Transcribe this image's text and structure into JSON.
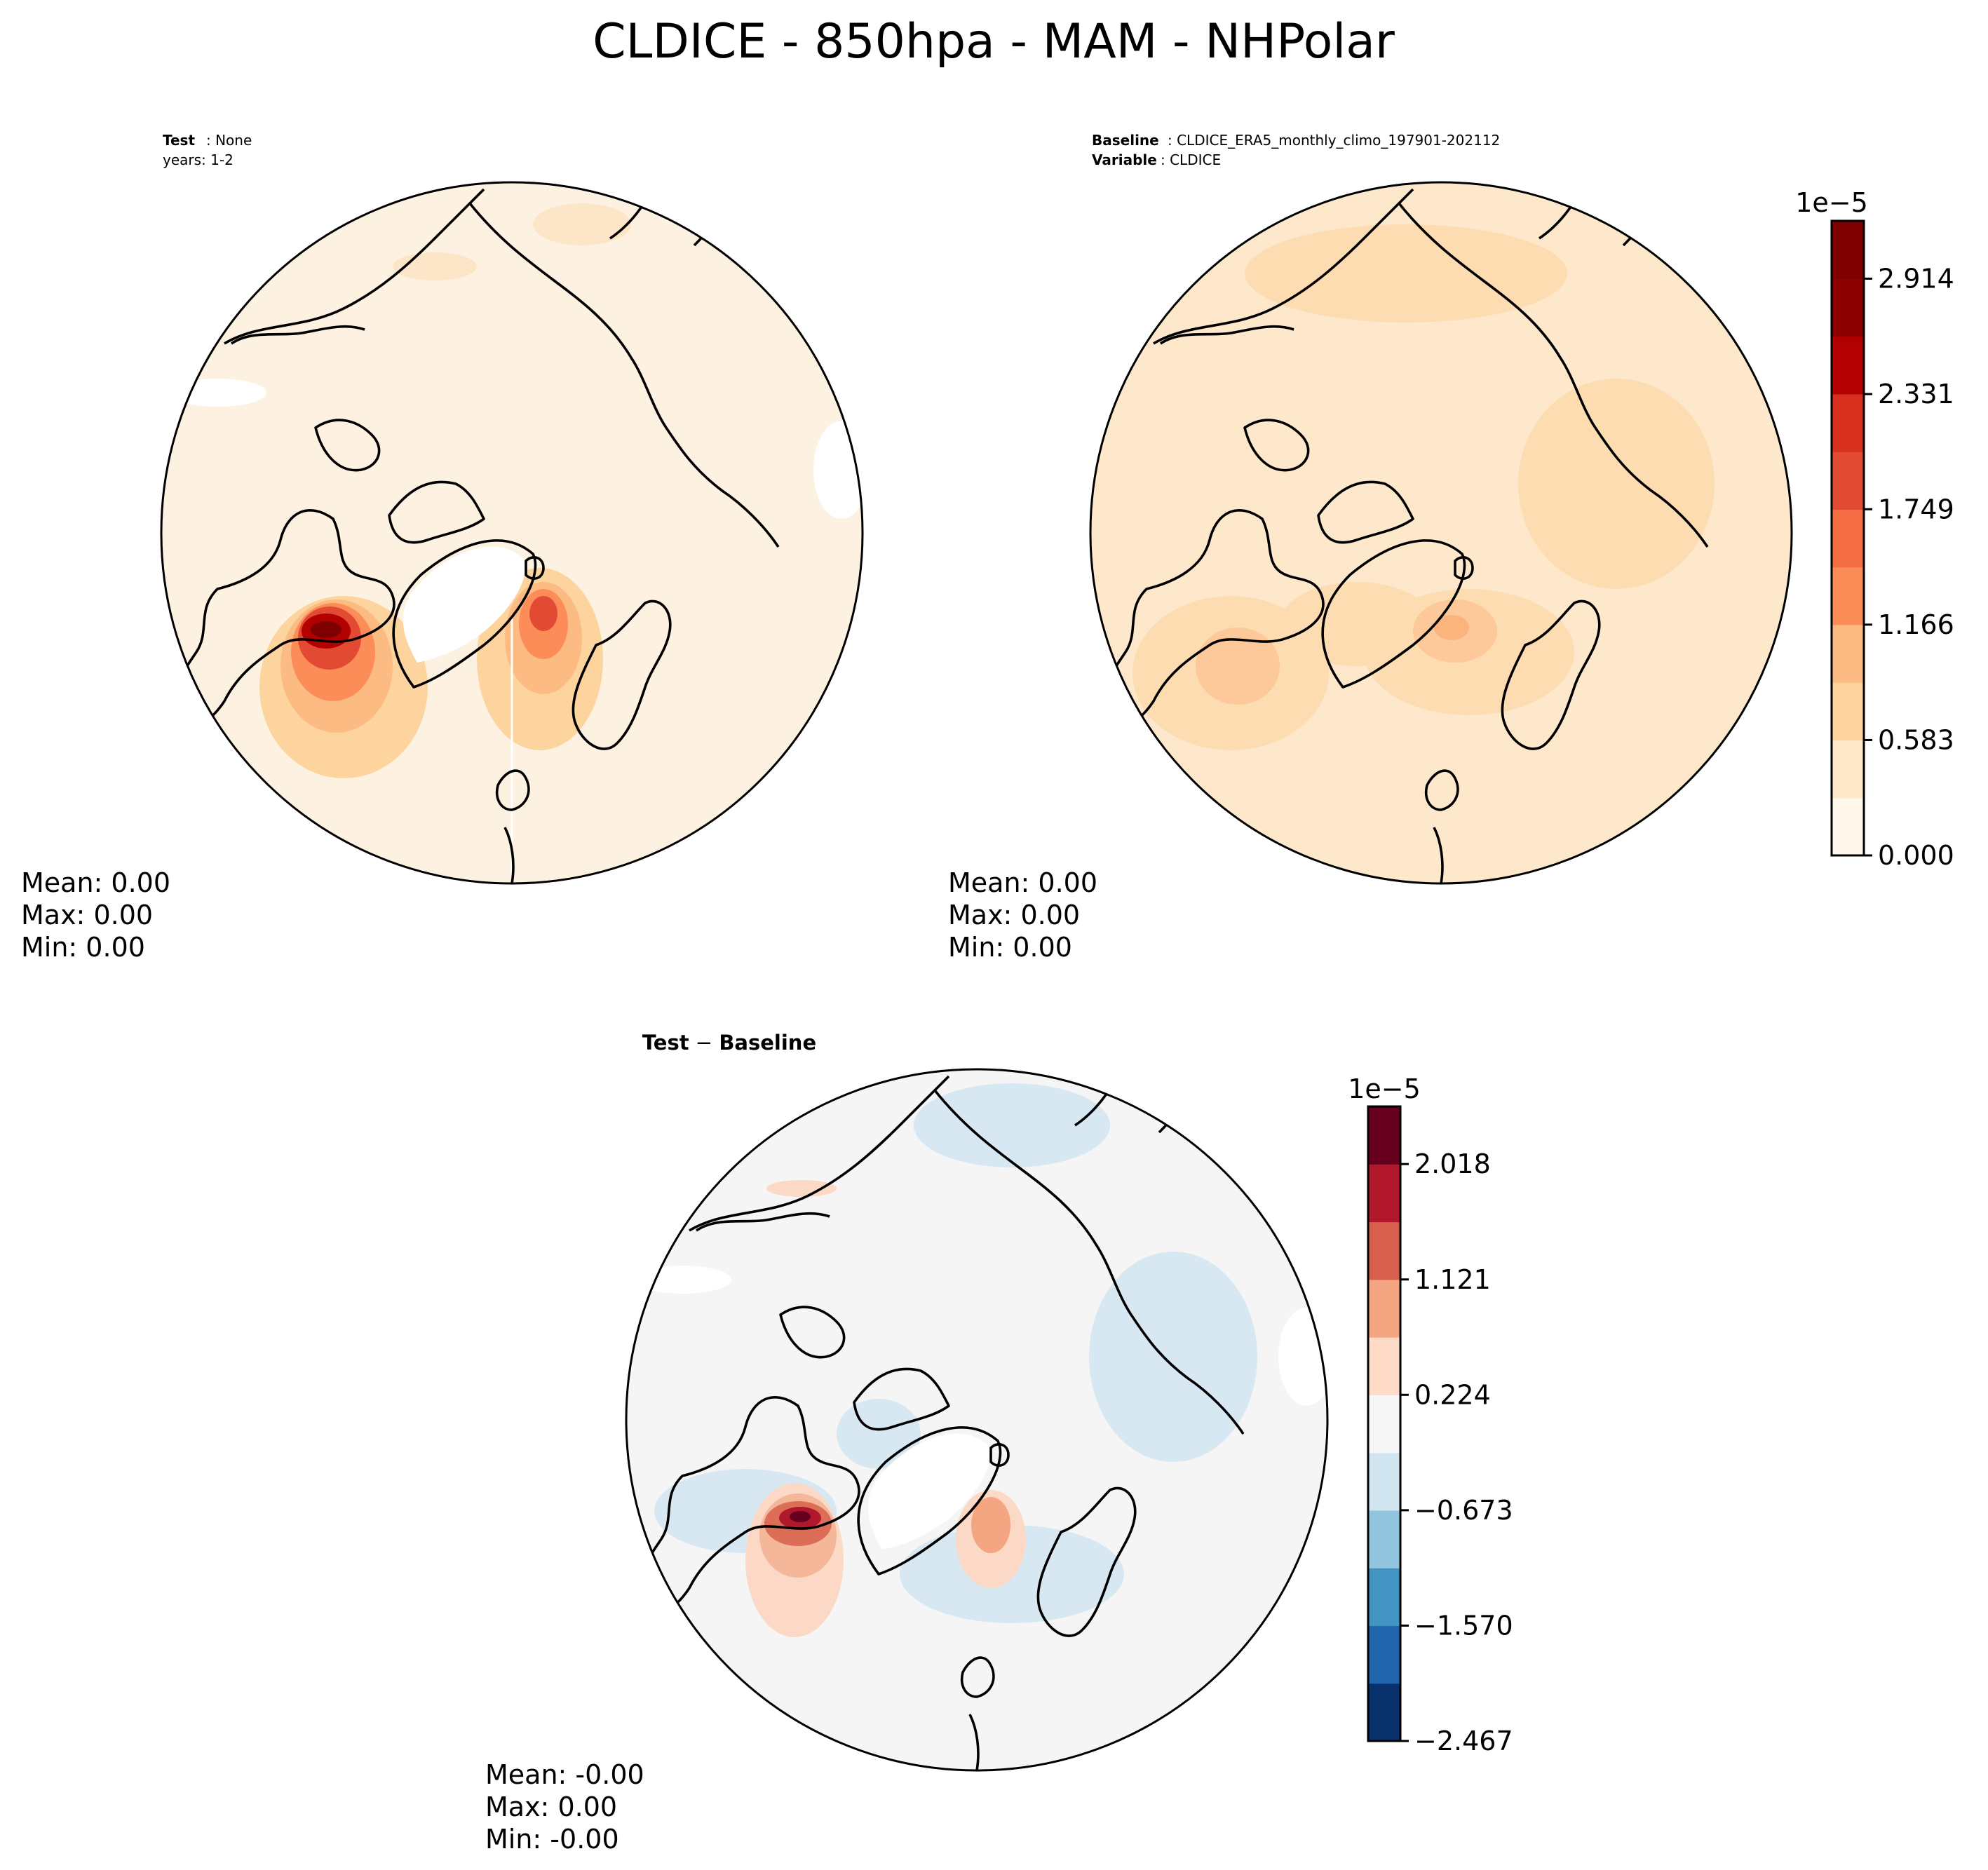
{
  "figure": {
    "title": "CLDICE - 850hpa - MAM - NHPolar"
  },
  "chart_data": [
    {
      "type": "heatmap",
      "projection": "north-polar-stereographic",
      "panel": "test",
      "header": {
        "line1_label": "Test",
        "line1_value": ": None",
        "line2": "years: 1-2"
      },
      "stats": {
        "mean": "Mean:  0.00",
        "max": "Max:  0.00",
        "min": "Min:  0.00"
      },
      "colormap": "OrRd (shared with baseline colorbar)"
    },
    {
      "type": "heatmap",
      "projection": "north-polar-stereographic",
      "panel": "baseline",
      "header": {
        "line1_label": "Baseline",
        "line1_value": ": CLDICE_ERA5_monthly_climo_197901-202112",
        "line2_label": "Variable",
        "line2_value": ": CLDICE"
      },
      "stats": {
        "mean": "Mean:  0.00",
        "max": "Max:  0.00",
        "min": "Min:  0.00"
      },
      "colorbar": {
        "scale_label": "1e−5",
        "range": [
          0.0,
          3.206
        ],
        "ticks": [
          "2.914",
          "2.331",
          "1.749",
          "1.166",
          "0.583",
          "0.000"
        ],
        "tick_values": [
          2.914,
          2.331,
          1.749,
          1.166,
          0.583,
          0.0
        ],
        "levels": 11,
        "colors": [
          "#fff7ec",
          "#fee8c8",
          "#fdd49e",
          "#fdbb84",
          "#fc8d59",
          "#f46d43",
          "#e34a33",
          "#d7301f",
          "#b30000",
          "#8b0000",
          "#7f0000"
        ]
      }
    },
    {
      "type": "heatmap",
      "projection": "north-polar-stereographic",
      "panel": "difference",
      "header": {
        "title_a": "Test",
        "title_op": " − ",
        "title_b": "Baseline"
      },
      "stats": {
        "mean": "Mean: -0.00",
        "max": "Max:  0.00",
        "min": "Min: -0.00"
      },
      "colorbar": {
        "scale_label": "1e−5",
        "range": [
          -2.467,
          2.466
        ],
        "ticks": [
          "2.018",
          "1.121",
          "0.224",
          "−0.673",
          "−1.570",
          "−2.467"
        ],
        "tick_values": [
          2.018,
          1.121,
          0.224,
          -0.673,
          -1.57,
          -2.467
        ],
        "levels": 11,
        "colors": [
          "#08306b",
          "#2166ac",
          "#4393c3",
          "#92c5de",
          "#d1e5f0",
          "#f7f7f7",
          "#fddbc7",
          "#f4a582",
          "#d6604d",
          "#b2182b",
          "#67001f"
        ]
      }
    }
  ]
}
